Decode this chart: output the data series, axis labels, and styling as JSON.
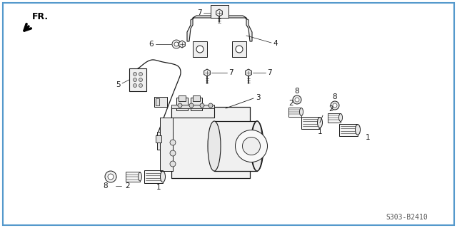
{
  "background_color": "#ffffff",
  "line_color": "#1a1a1a",
  "border_color": "#5599cc",
  "fig_width": 6.4,
  "fig_height": 3.2,
  "dpi": 100,
  "labels": {
    "fr_arrow": "FR.",
    "part_number_text": "S303-B2410"
  }
}
